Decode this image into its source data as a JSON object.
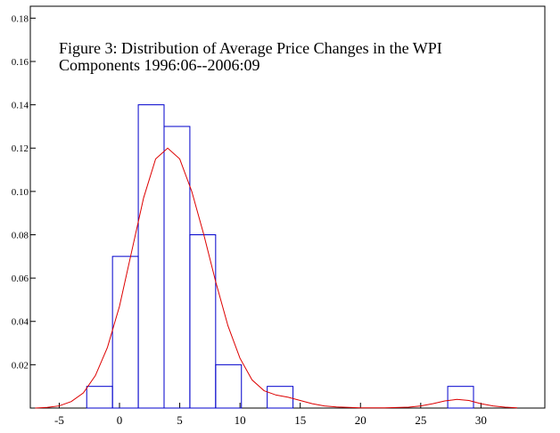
{
  "chart_data": {
    "type": "histogram",
    "title": [
      "Figure 3: Distribution of Average Price Changes in the WPI",
      "Components 1996:06--2006:09"
    ],
    "bins": [
      -2.72,
      -0.58,
      1.56,
      3.7,
      5.84,
      7.98,
      10.12,
      12.26,
      14.4,
      16.54,
      18.68,
      20.82,
      22.96,
      25.1,
      27.24,
      29.38
    ],
    "values": [
      0.01,
      0.07,
      0.14,
      0.13,
      0.08,
      0.02,
      0,
      0.01,
      0,
      0,
      0,
      0,
      0,
      0,
      0.01
    ],
    "color": "#0000cc",
    "curve": {
      "color": "#dd0000",
      "x": [
        -7,
        -6,
        -5,
        -4,
        -3,
        -2,
        -1,
        0,
        1,
        2,
        3,
        4,
        5,
        6,
        7,
        8,
        9,
        10,
        11,
        12,
        13,
        14,
        15,
        16,
        17,
        18,
        20,
        22,
        24,
        25,
        26,
        27,
        28,
        29,
        30,
        31,
        32,
        33
      ],
      "values": [
        0,
        0.0003,
        0.001,
        0.003,
        0.007,
        0.015,
        0.028,
        0.047,
        0.072,
        0.097,
        0.115,
        0.12,
        0.115,
        0.1,
        0.08,
        0.058,
        0.038,
        0.023,
        0.013,
        0.008,
        0.006,
        0.005,
        0.0035,
        0.002,
        0.001,
        0.0005,
        0.0001,
        0.0001,
        0.0004,
        0.001,
        0.002,
        0.0033,
        0.004,
        0.0035,
        0.002,
        0.001,
        0.0004,
        0.0001
      ]
    },
    "xlim": [
      -7.4,
      35.3
    ],
    "ylim": [
      0,
      0.1855
    ],
    "xticks": [
      -5,
      0,
      5,
      10,
      15,
      20,
      25,
      30
    ],
    "yticks": [
      0.02,
      0.04,
      0.06,
      0.08,
      {
        "value": 0.1,
        "label": "0.10"
      },
      0.12,
      0.14,
      0.16,
      0.18
    ]
  }
}
